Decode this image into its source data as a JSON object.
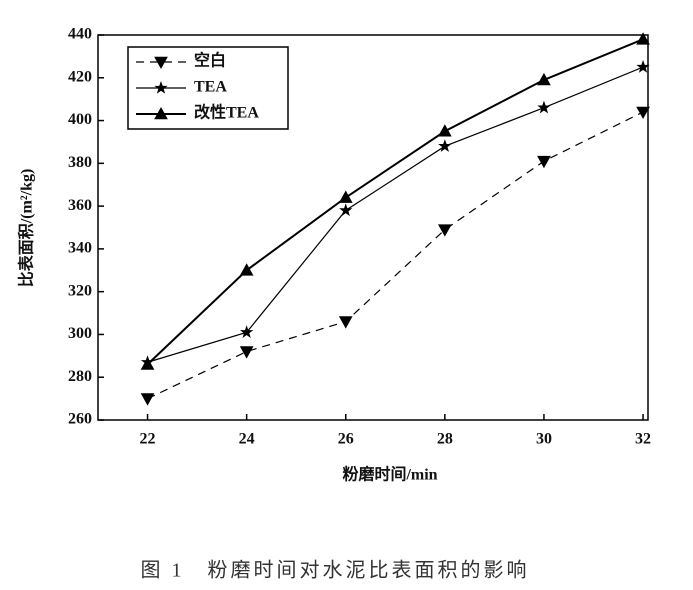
{
  "chart_data": {
    "type": "line",
    "x": [
      22,
      24,
      26,
      28,
      30,
      32
    ],
    "series": [
      {
        "name": "空白",
        "color": "#000000",
        "linestyle": "dashed",
        "marker": "triangle-down",
        "values": [
          270,
          292,
          306,
          349,
          381,
          404
        ]
      },
      {
        "name": "TEA",
        "color": "#000000",
        "linestyle": "solid",
        "marker": "star",
        "values": [
          287,
          301,
          358,
          388,
          406,
          425
        ]
      },
      {
        "name": "改性TEA",
        "color": "#000000",
        "linestyle": "solid",
        "marker": "triangle-up",
        "values": [
          286,
          330,
          364,
          395,
          419,
          438
        ]
      }
    ],
    "xlabel": "粉磨时间/min",
    "ylabel": "比表面积/(m²/kg)",
    "xlim": [
      21,
      32.1
    ],
    "xticks": [
      22,
      24,
      26,
      28,
      30,
      32
    ],
    "ylim": [
      260,
      440
    ],
    "yticks": [
      260,
      280,
      300,
      320,
      340,
      360,
      380,
      400,
      420,
      440
    ],
    "legend": "upper left",
    "caption": "图 1　粉磨时间对水泥比表面积的影响"
  }
}
